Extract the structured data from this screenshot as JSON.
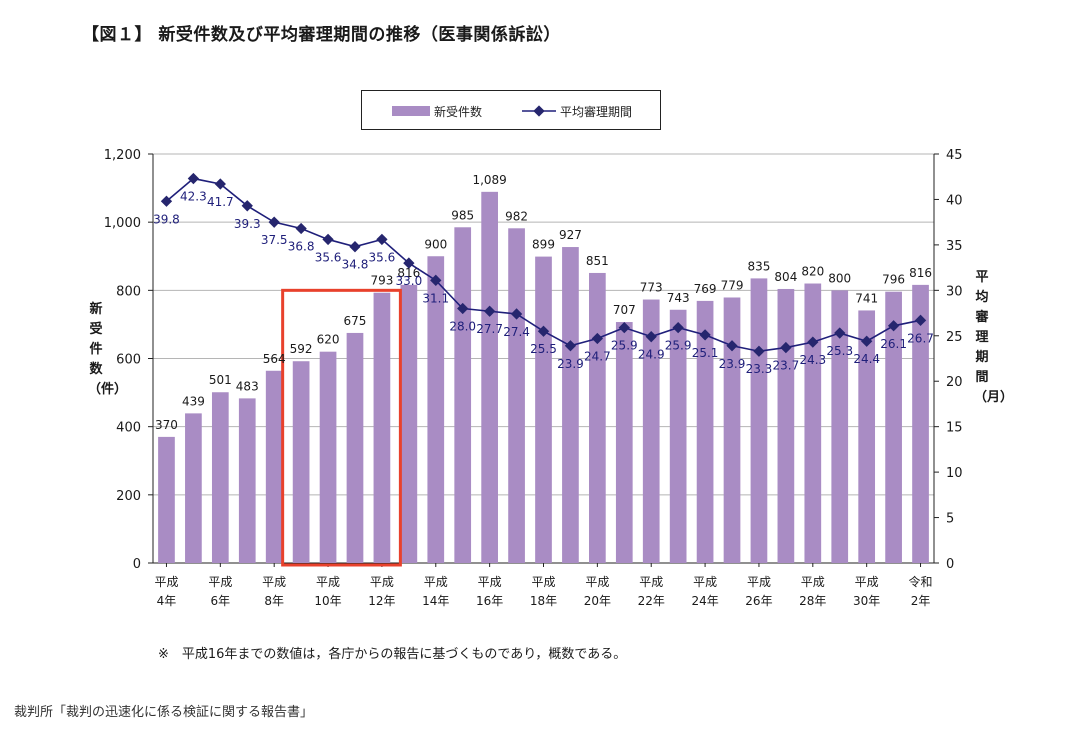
{
  "page": {
    "title": "【図１】 新受件数及び平均審理期間の推移（医事関係訴訟）",
    "note": "※　平成16年までの数値は，各庁からの報告に基づくものであり，概数である。",
    "source": "裁判所「裁判の迅速化に係る検証に関する報告書」"
  },
  "colors": {
    "bar": "#a98cc4",
    "line": "#1f1f7a",
    "marker": "#26266e",
    "highlight_box": "#e8412c",
    "grid": "#b5b5b5"
  },
  "chart_data": {
    "type": "bar",
    "categories": [
      "平成4年",
      "平成5年",
      "平成6年",
      "平成7年",
      "平成8年",
      "平成9年",
      "平成10年",
      "平成11年",
      "平成12年",
      "平成13年",
      "平成14年",
      "平成15年",
      "平成16年",
      "平成17年",
      "平成18年",
      "平成19年",
      "平成20年",
      "平成21年",
      "平成22年",
      "平成23年",
      "平成24年",
      "平成25年",
      "平成26年",
      "平成27年",
      "平成28年",
      "平成29年",
      "平成30年",
      "令和元年",
      "令和2年"
    ],
    "x_tick_labels": [
      {
        "index": 0,
        "line1": "平成",
        "line2": "4年"
      },
      {
        "index": 2,
        "line1": "平成",
        "line2": "6年"
      },
      {
        "index": 4,
        "line1": "平成",
        "line2": "8年"
      },
      {
        "index": 6,
        "line1": "平成",
        "line2": "10年"
      },
      {
        "index": 8,
        "line1": "平成",
        "line2": "12年"
      },
      {
        "index": 10,
        "line1": "平成",
        "line2": "14年"
      },
      {
        "index": 12,
        "line1": "平成",
        "line2": "16年"
      },
      {
        "index": 14,
        "line1": "平成",
        "line2": "18年"
      },
      {
        "index": 16,
        "line1": "平成",
        "line2": "20年"
      },
      {
        "index": 18,
        "line1": "平成",
        "line2": "22年"
      },
      {
        "index": 20,
        "line1": "平成",
        "line2": "24年"
      },
      {
        "index": 22,
        "line1": "平成",
        "line2": "26年"
      },
      {
        "index": 24,
        "line1": "平成",
        "line2": "28年"
      },
      {
        "index": 26,
        "line1": "平成",
        "line2": "30年"
      },
      {
        "index": 28,
        "line1": "令和",
        "line2": "2年"
      }
    ],
    "series": [
      {
        "name": "新受件数",
        "type": "bar",
        "axis": "left",
        "values": [
          370,
          439,
          501,
          483,
          564,
          592,
          620,
          675,
          793,
          816,
          900,
          985,
          1089,
          982,
          899,
          927,
          851,
          707,
          773,
          743,
          769,
          779,
          835,
          804,
          820,
          800,
          741,
          796,
          816
        ],
        "labels": [
          "370",
          "439",
          "501",
          "483",
          "564",
          "592",
          "620",
          "675",
          "793",
          "816",
          "900",
          "985",
          "1,089",
          "982",
          "899",
          "927",
          "851",
          "707",
          "773",
          "743",
          "769",
          "779",
          "835",
          "804",
          "820",
          "800",
          "741",
          "796",
          "816"
        ]
      },
      {
        "name": "平均審理期間",
        "type": "line",
        "axis": "right",
        "values": [
          39.8,
          42.3,
          41.7,
          39.3,
          37.5,
          36.8,
          35.6,
          34.8,
          35.6,
          33.0,
          31.1,
          28.0,
          27.7,
          27.4,
          25.5,
          23.9,
          24.7,
          25.9,
          24.9,
          25.9,
          25.1,
          23.9,
          23.3,
          23.7,
          24.3,
          25.3,
          24.4,
          26.1,
          26.7
        ],
        "labels": [
          "39.8",
          "42.3",
          "41.7",
          "39.3",
          "37.5",
          "36.8",
          "35.6",
          "34.8",
          "35.6",
          "33.0",
          "31.1",
          "28.0",
          "27.7",
          "27.4",
          "25.5",
          "23.9",
          "24.7",
          "25.9",
          "24.9",
          "25.9",
          "25.1",
          "23.9",
          "23.3",
          "23.7",
          "24.3",
          "25.3",
          "24.4",
          "26.1",
          "26.7"
        ]
      }
    ],
    "y_left": {
      "label": "新受件数（件）",
      "range": [
        0,
        1200
      ],
      "ticks": [
        "0",
        "200",
        "400",
        "600",
        "800",
        "1,000",
        "1,200"
      ],
      "tick_values": [
        0,
        200,
        400,
        600,
        800,
        1000,
        1200
      ]
    },
    "y_right": {
      "label": "平均審理期間（月）",
      "range": [
        0,
        45
      ],
      "ticks": [
        "0",
        "5",
        "10",
        "15",
        "20",
        "25",
        "30",
        "35",
        "40",
        "45"
      ],
      "tick_values": [
        0,
        5,
        10,
        15,
        20,
        25,
        30,
        35,
        40,
        45
      ]
    },
    "grid": true,
    "legend": {
      "position": "top-center",
      "entries": [
        "新受件数",
        "平均審理期間"
      ]
    },
    "highlight": {
      "from_category": "平成9年",
      "to_category": "平成12年"
    }
  }
}
